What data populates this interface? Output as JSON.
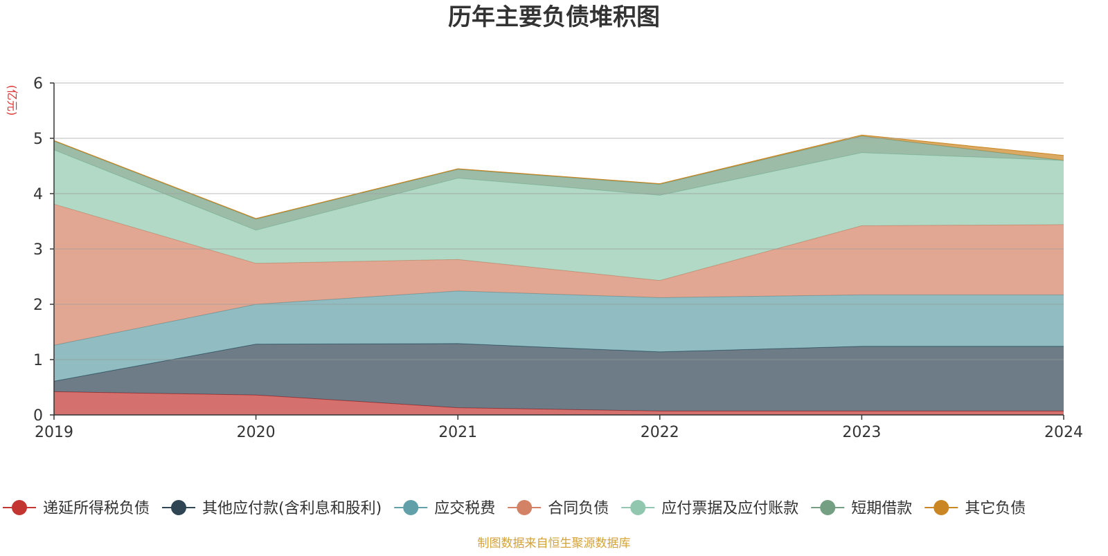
{
  "chart_data": {
    "type": "area",
    "stacked": true,
    "title": "历年主要负债堆积图",
    "unit_label": "(亿元)",
    "x": [
      "2019",
      "2020",
      "2021",
      "2022",
      "2023",
      "2024"
    ],
    "ylim": [
      0,
      6
    ],
    "yticks": [
      0,
      1,
      2,
      3,
      4,
      5,
      6
    ],
    "grid": true,
    "legend_position": "bottom",
    "series": [
      {
        "name": "递延所得税负债",
        "color": "#c23531",
        "values": [
          0.42,
          0.36,
          0.13,
          0.07,
          0.07,
          0.07
        ]
      },
      {
        "name": "其他应付款(含利息和股利)",
        "color": "#2f4554",
        "values": [
          0.19,
          0.92,
          1.16,
          1.07,
          1.17,
          1.17
        ]
      },
      {
        "name": "应交税费",
        "color": "#61a0a8",
        "values": [
          0.65,
          0.72,
          0.95,
          0.98,
          0.93,
          0.93
        ]
      },
      {
        "name": "合同负债",
        "color": "#d48265",
        "values": [
          2.55,
          0.74,
          0.57,
          0.31,
          1.25,
          1.27
        ]
      },
      {
        "name": "应付票据及应付账款",
        "color": "#91c7ae",
        "values": [
          0.98,
          0.6,
          1.47,
          1.54,
          1.32,
          1.16
        ]
      },
      {
        "name": "短期借款",
        "color": "#749f83",
        "values": [
          0.16,
          0.2,
          0.16,
          0.2,
          0.3,
          0.0
        ]
      },
      {
        "name": "其它负债",
        "color": "#ca8622",
        "values": [
          0.01,
          0.01,
          0.01,
          0.01,
          0.02,
          0.09
        ]
      }
    ]
  },
  "footer": {
    "source_text": "制图数据来自恒生聚源数据库"
  }
}
